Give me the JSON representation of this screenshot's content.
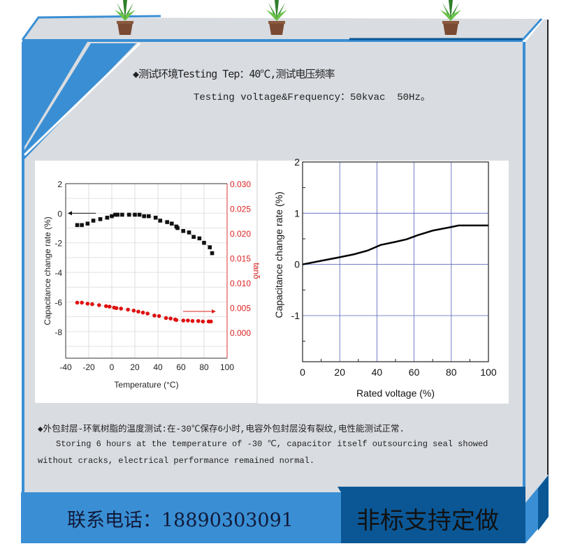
{
  "header": {
    "line1": "◆测试环境Testing Tep：40℃,测试电压频率",
    "line2": "Testing voltage&Frequency：50kvac  50Hz。"
  },
  "footer_text": {
    "line1": "◆外包封层-环氧树脂的温度测试:在-30℃保存6小时,电容外包封层没有裂纹,电性能测试正常.",
    "line2": "Storing 6 hours at the temperature of -30 ℃, capacitor itself outsourcing seal showed",
    "line3": "without cracks, electrical performance remained normal."
  },
  "banner": {
    "phone": "联系电话：18890303091",
    "custom": "非标支持定做"
  },
  "colors": {
    "blue": "#3a8fd4",
    "dark_blue": "#0b5795",
    "panel": "#d9dce1",
    "red": "#e01010"
  },
  "icons": [
    "plant-pot-icon",
    "plant-pot-icon",
    "plant-pot-icon"
  ],
  "chart_data": [
    {
      "type": "scatter",
      "xlabel": "Temperature (°C)",
      "ylabel": "Capacitance change rate (%)",
      "y2label": "tanδ",
      "xlim": [
        -40,
        100
      ],
      "ylim": [
        -9.8,
        2
      ],
      "y2lim": [
        -0.0052,
        0.03
      ],
      "xticks": [
        "-40",
        "-20",
        "0",
        "20",
        "40",
        "60",
        "80",
        "100"
      ],
      "yticks": [
        "2",
        "0",
        "-2",
        "-4",
        "-6",
        "-8"
      ],
      "y2ticks": [
        "0.030",
        "0.025",
        "0.020",
        "0.015",
        "0.010",
        "0.005",
        "0.000"
      ],
      "grid": true,
      "series": [
        {
          "axis": "left",
          "color": "#111111",
          "marker": "square",
          "x": [
            -30,
            -26,
            -21,
            -16,
            -10,
            -4,
            0,
            3,
            5,
            9,
            15,
            20,
            24,
            28,
            32,
            38,
            42,
            48,
            52,
            56,
            57,
            62,
            67,
            71,
            76,
            80,
            85,
            87
          ],
          "y": [
            -0.8,
            -0.8,
            -0.7,
            -0.5,
            -0.4,
            -0.3,
            -0.2,
            -0.1,
            -0.1,
            -0.1,
            -0.1,
            -0.1,
            -0.1,
            -0.2,
            -0.2,
            -0.3,
            -0.5,
            -0.6,
            -0.7,
            -0.9,
            -1.0,
            -1.2,
            -1.3,
            -1.6,
            -1.7,
            -2.0,
            -2.3,
            -2.7
          ]
        },
        {
          "axis": "right",
          "color": "#e01010",
          "marker": "circle",
          "x": [
            -30,
            -26,
            -21,
            -17,
            -11,
            -5,
            -2,
            2,
            4,
            8,
            14,
            19,
            23,
            27,
            31,
            37,
            41,
            47,
            51,
            55,
            56,
            62,
            66,
            70,
            75,
            79,
            84,
            86
          ],
          "y": [
            0.006,
            0.006,
            0.0058,
            0.0057,
            0.0055,
            0.0053,
            0.0052,
            0.005,
            0.0049,
            0.0048,
            0.0046,
            0.0044,
            0.0042,
            0.004,
            0.0038,
            0.0034,
            0.0033,
            0.0029,
            0.0028,
            0.0026,
            0.0025,
            0.0024,
            0.0024,
            0.0023,
            0.0023,
            0.0022,
            0.0022,
            0.0022
          ]
        }
      ]
    },
    {
      "type": "line",
      "xlabel": "Rated voltage (%)",
      "ylabel": "Capacitance change rate (%)",
      "xlim": [
        0,
        100
      ],
      "ylim": [
        -1.9,
        2
      ],
      "xticks": [
        "0",
        "20",
        "40",
        "60",
        "80",
        "100"
      ],
      "yticks": [
        "2",
        "1",
        "0",
        "-1"
      ],
      "grid": true,
      "series": [
        {
          "color": "#000000",
          "x": [
            0,
            10,
            20,
            28,
            35,
            42,
            50,
            56,
            62,
            70,
            80,
            84,
            100
          ],
          "y": [
            0,
            0.07,
            0.14,
            0.2,
            0.27,
            0.38,
            0.44,
            0.49,
            0.57,
            0.66,
            0.73,
            0.76,
            0.76
          ]
        }
      ]
    }
  ]
}
